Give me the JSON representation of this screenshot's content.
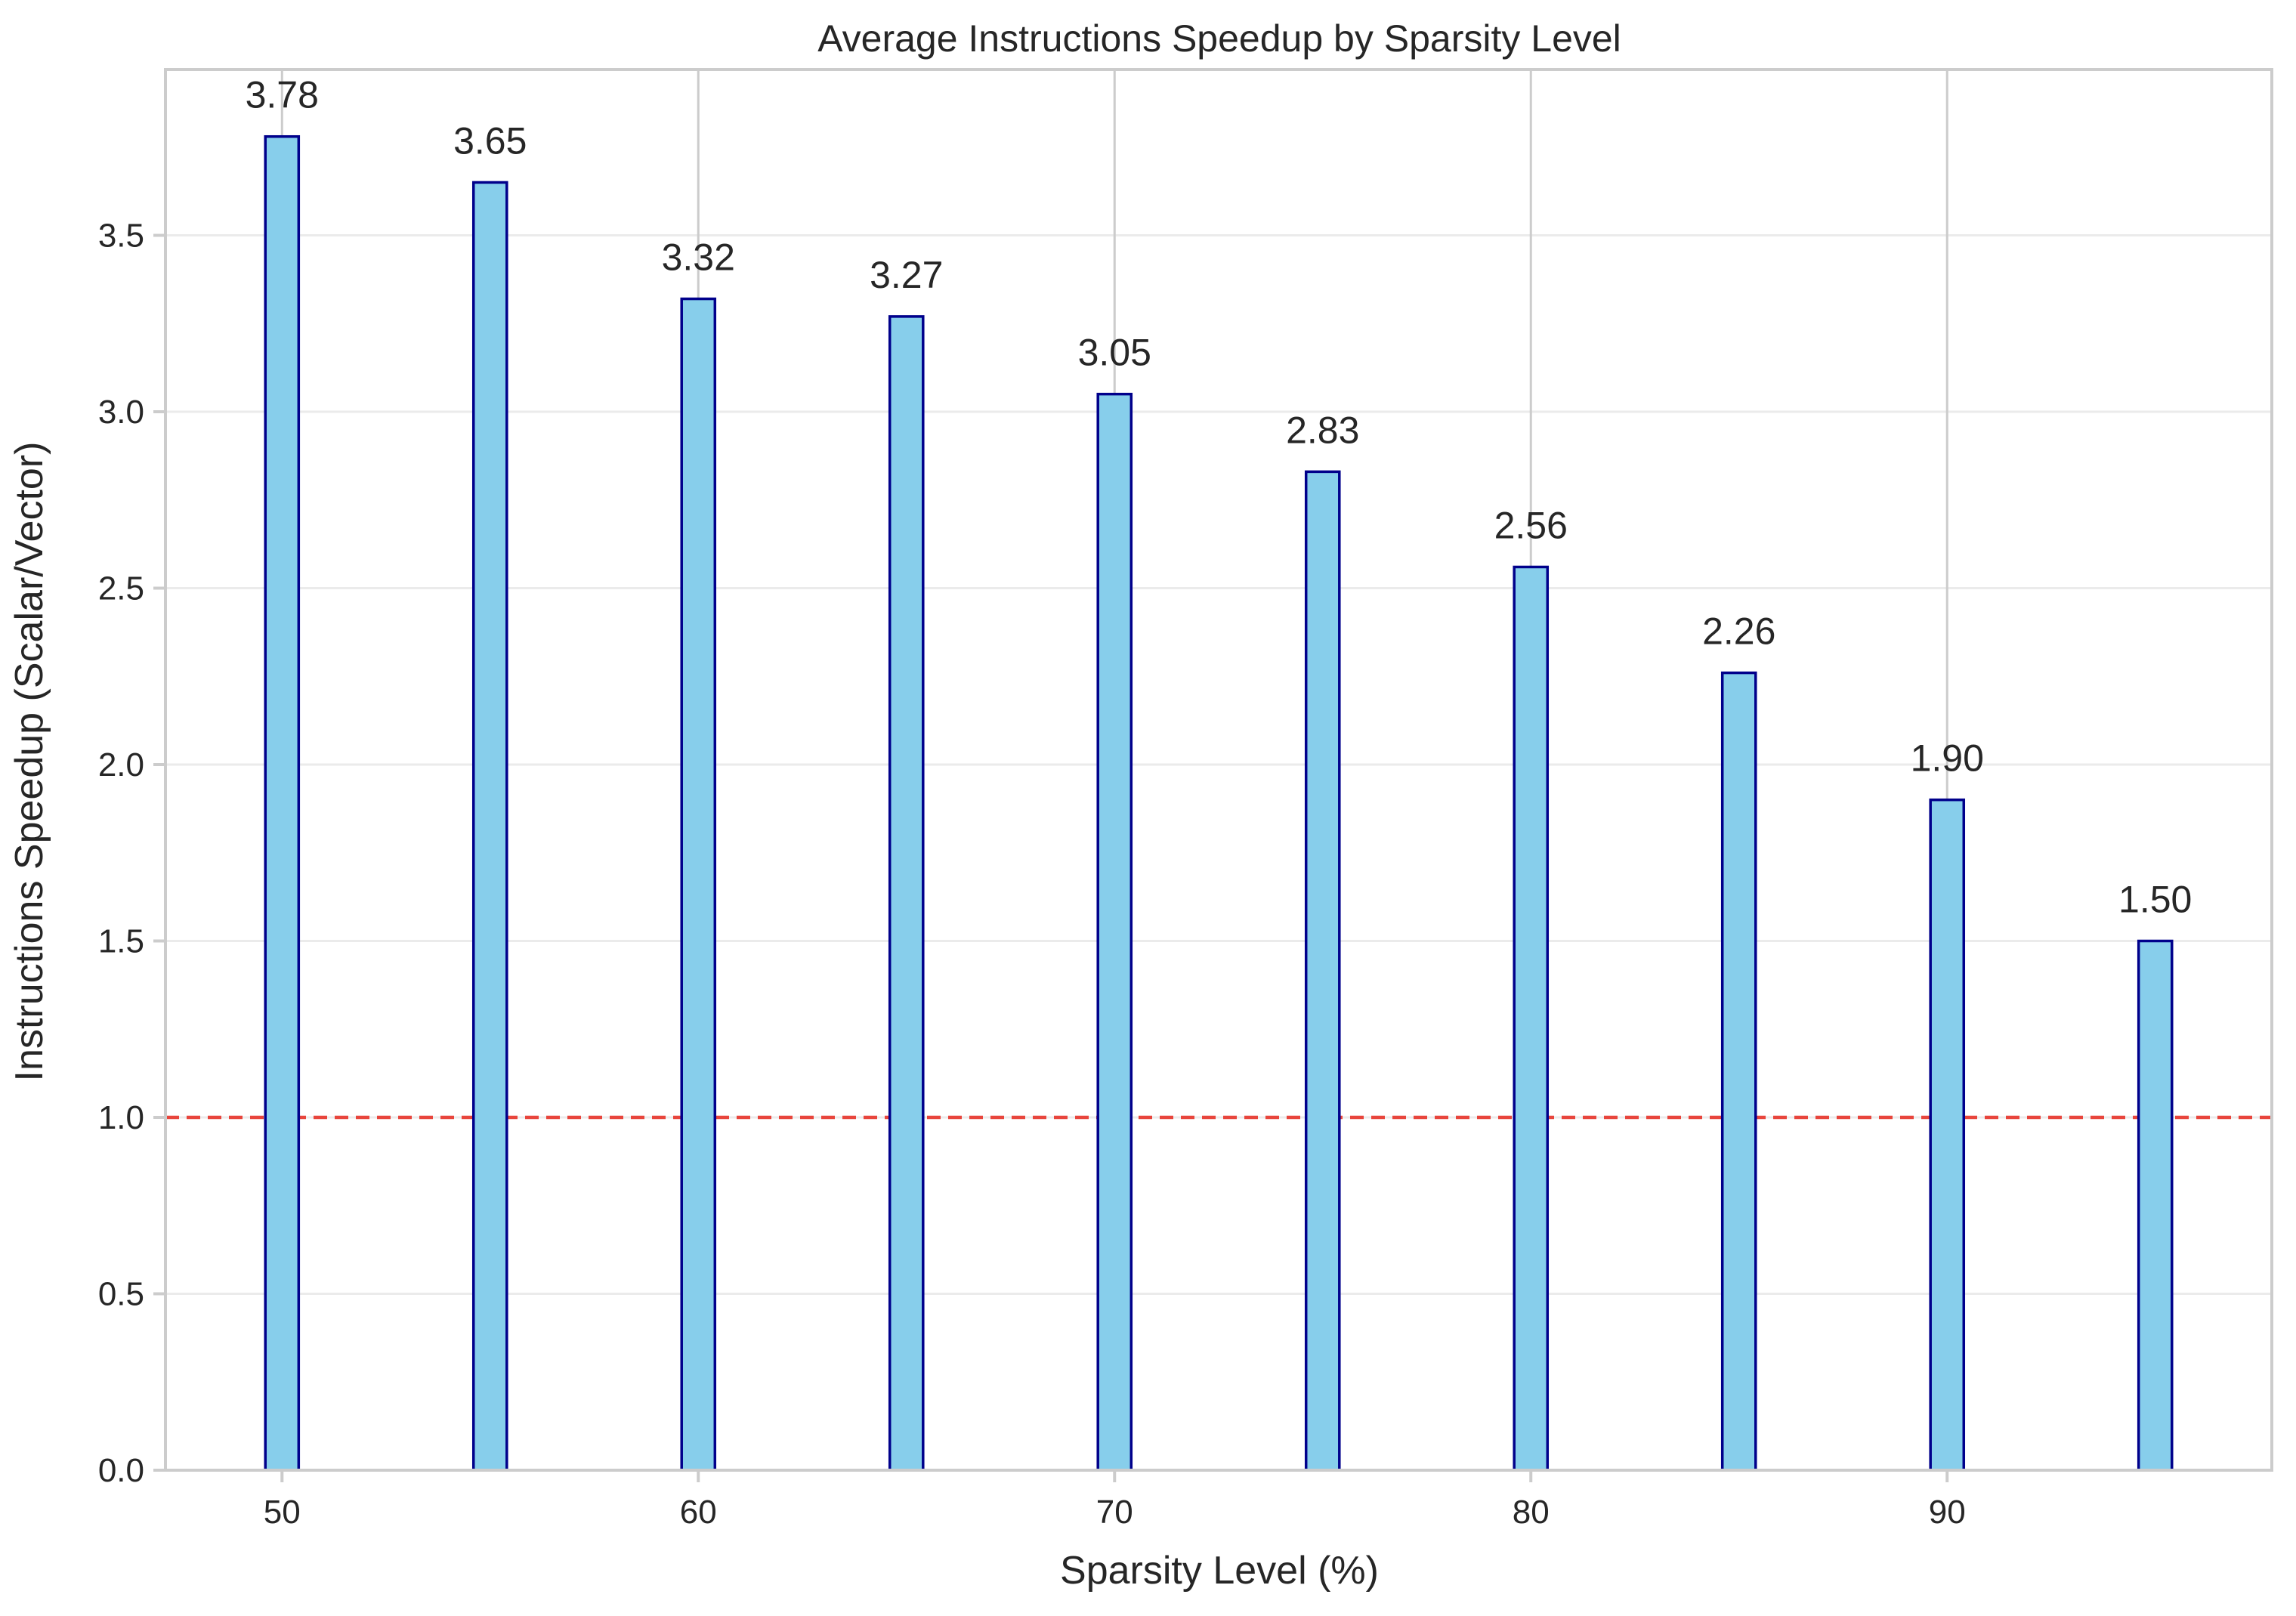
{
  "chart_data": {
    "type": "bar",
    "title": "Average Instructions Speedup by Sparsity Level",
    "xlabel": "Sparsity Level (%)",
    "ylabel": "Instructions Speedup (Scalar/Vector)",
    "x": [
      50,
      55,
      60,
      65,
      70,
      75,
      80,
      85,
      90,
      95
    ],
    "values": [
      3.78,
      3.65,
      3.32,
      3.27,
      3.05,
      2.83,
      2.56,
      2.26,
      1.9,
      1.5
    ],
    "value_labels": [
      "3.78",
      "3.65",
      "3.32",
      "3.27",
      "3.05",
      "2.83",
      "2.56",
      "2.26",
      "1.90",
      "1.50"
    ],
    "xlim": [
      47.2,
      97.8
    ],
    "ylim": [
      0,
      3.97
    ],
    "xticks": [
      50,
      60,
      70,
      80,
      90
    ],
    "xtick_labels": [
      "50",
      "60",
      "70",
      "80",
      "90"
    ],
    "yticks": [
      0,
      0.5,
      1.0,
      1.5,
      2.0,
      2.5,
      3.0,
      3.5
    ],
    "ytick_labels": [
      "0.0",
      "0.5",
      "1.0",
      "1.5",
      "2.0",
      "2.5",
      "3.0",
      "3.5"
    ],
    "bar_width": 0.8,
    "reference_line": {
      "y": 1.0,
      "style": "dashed",
      "color": "#e8453c"
    },
    "grid": true,
    "colors": {
      "bar_fill": "#87ceeb",
      "bar_edge": "#00008b",
      "grid": "#ebebeb",
      "axes": "#cccccc",
      "text": "#262626"
    }
  }
}
